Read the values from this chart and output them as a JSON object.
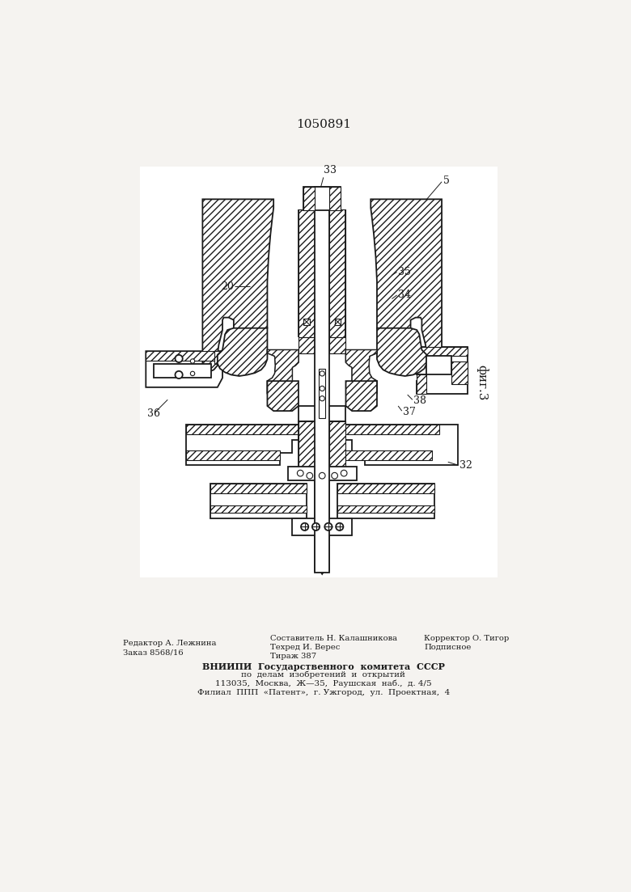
{
  "title": "1050891",
  "fig_label": "фиг.3",
  "background_color": "#f5f3f0",
  "line_color": "#1a1a1a",
  "footer": {
    "left1": "Редактор А. Лежнина",
    "left2": "Заказ 8568/16",
    "center1": "Составитель Н. Калашникова",
    "center2": "Техред И. Верес",
    "center3": "Тираж 387",
    "right1": "Корректор О. Тигор",
    "right2": "Подписное"
  },
  "vniipи": [
    "ВНИИПИ  Государственного  комитета  СССР",
    "по  делам  изобретений  и  открытий",
    "113035,  Москва,  Ж—35,  Раушская  наб.,  д. 4/5",
    "Филиал  ППП  «Патент»,  г. Ужгород,  ул.  Проектная,  4"
  ]
}
